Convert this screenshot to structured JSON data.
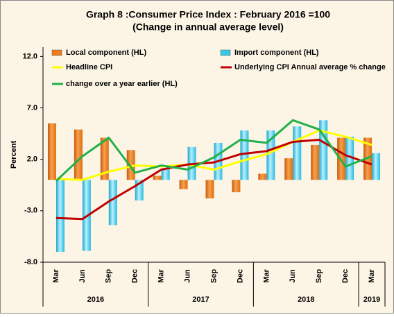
{
  "chart_data": {
    "type": "bar",
    "title": "Graph 8 :Consumer Price Index : February 2016 =100",
    "subtitle": "(Change in annual average level)",
    "y_label": "Percent",
    "categories": [
      "Mar",
      "Jun",
      "Sep",
      "Dec",
      "Mar",
      "Jun",
      "Sep",
      "Dec",
      "Mar",
      "Jun",
      "Sep",
      "Dec",
      "Mar"
    ],
    "x_groups": [
      {
        "label": "2016",
        "count": 4
      },
      {
        "label": "2017",
        "count": 4
      },
      {
        "label": "2018",
        "count": 4
      },
      {
        "label": "2019",
        "count": 1
      }
    ],
    "ylim": [
      -8,
      12.9
    ],
    "yticks": [
      {
        "value": -8,
        "label": "-8.0"
      },
      {
        "value": -3,
        "label": "-3.0"
      },
      {
        "value": 2,
        "label": "2.0"
      },
      {
        "value": 7,
        "label": "7.0"
      },
      {
        "value": 12,
        "label": "12.0"
      }
    ],
    "grid": false,
    "legend": "top",
    "series": [
      {
        "name": "Local component (HL)",
        "kind": "bar",
        "color": "#f07d1a",
        "values": [
          5.5,
          4.9,
          4.1,
          2.9,
          0.4,
          -0.9,
          -1.8,
          -1.2,
          0.6,
          2.1,
          3.4,
          4.1,
          4.1
        ]
      },
      {
        "name": "Import component (HL)",
        "kind": "bar",
        "color": "#38c8e8",
        "values": [
          -7.0,
          -6.9,
          -4.4,
          -2.0,
          1.1,
          3.2,
          3.6,
          4.8,
          4.8,
          5.2,
          5.8,
          4.2,
          2.6
        ]
      },
      {
        "name": "Headline CPI",
        "kind": "line",
        "color": "#ffff00",
        "values": [
          0.1,
          0.0,
          0.8,
          1.4,
          1.3,
          1.5,
          1.0,
          1.8,
          2.5,
          3.7,
          4.8,
          4.2,
          3.4
        ]
      },
      {
        "name": "Underlying CPI Annual average % change",
        "kind": "line",
        "color": "#c00000",
        "values": [
          -3.7,
          -3.8,
          -2.1,
          -0.6,
          1.0,
          1.5,
          1.7,
          2.5,
          2.8,
          3.7,
          3.9,
          2.4,
          1.5
        ]
      },
      {
        "name": "change over a year earlier (HL)",
        "kind": "line",
        "color": "#22b04a",
        "values": [
          -0.1,
          2.3,
          4.1,
          0.7,
          1.4,
          1.0,
          2.2,
          3.9,
          3.6,
          5.8,
          4.9,
          1.3,
          2.3
        ]
      }
    ]
  }
}
